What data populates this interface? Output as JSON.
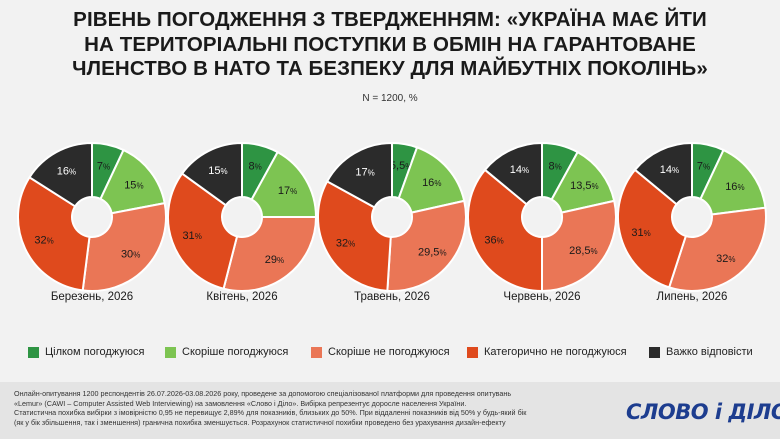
{
  "title_lines": [
    "РІВЕНЬ ПОГОДЖЕННЯ З ТВЕРДЖЕННЯМ: «УКРАЇНА МАЄ ЙТИ",
    "НА ТЕРИТОРІАЛЬНІ ПОСТУПКИ В ОБМІН НА ГАРАНТОВАНЕ",
    "ЧЛЕНСТВО В НАТО ТА БЕЗПЕКУ ДЛЯ МАЙБУТНІХ ПОКОЛІНЬ»"
  ],
  "subtitle": "N = 1200, %",
  "chart_data": {
    "type": "pie",
    "style": "donut",
    "series_names": [
      "Цілком погоджуюся",
      "Скоріше погоджуюся",
      "Скоріше не погоджуюся",
      "Категорично не погоджуюся",
      "Важко відповісти"
    ],
    "colors": [
      "#2e9443",
      "#7dc452",
      "#ea7656",
      "#df4a1d",
      "#2b2b2b"
    ],
    "charts": [
      {
        "label": "Березень, 2026",
        "values": [
          7,
          15,
          30,
          32,
          16
        ],
        "value_labels": [
          "7",
          "15",
          "30",
          "32",
          "16"
        ]
      },
      {
        "label": "Квітень, 2026",
        "values": [
          8,
          17,
          29,
          31,
          15
        ],
        "value_labels": [
          "8",
          "17",
          "29",
          "31",
          "15"
        ]
      },
      {
        "label": "Травень, 2026",
        "values": [
          5.5,
          16,
          29.5,
          32,
          17
        ],
        "value_labels": [
          "5,5",
          "16",
          "29,5",
          "32",
          "17"
        ]
      },
      {
        "label": "Червень, 2026",
        "values": [
          8,
          13.5,
          28.5,
          36,
          14
        ],
        "value_labels": [
          "8",
          "13,5",
          "28,5",
          "36",
          "14"
        ]
      },
      {
        "label": "Липень, 2026",
        "values": [
          7,
          16,
          32,
          31,
          14
        ],
        "value_labels": [
          "7",
          "16",
          "32",
          "31",
          "14"
        ]
      }
    ],
    "unit_suffix": "%"
  },
  "footer_lines": [
    "Онлайн-опитування 1200 респондентів 26.07.2026-03.08.2026 року, проведене за допомогою спеціалізованої платформи для проведення опитувань",
    "«Lemur» (CAWI – Computer Assisted Web Interviewing) на замовлення «Слово і Діло». Вибірка репрезентує доросле населення України.",
    "Статистична похибка вибірки з імовірністю 0,95 не перевищує 2,89% для показників, близьких до 50%. При віддаленні показників від 50% у будь-який бік",
    "(як у бік збільшення, так і зменшення) гранична похибка зменшується. Розрахунок статистичної похибки проведено без урахування дизайн-ефекту"
  ],
  "logo_text": "СЛОВО і ДІЛО",
  "logo_color": "#1d3d8f"
}
